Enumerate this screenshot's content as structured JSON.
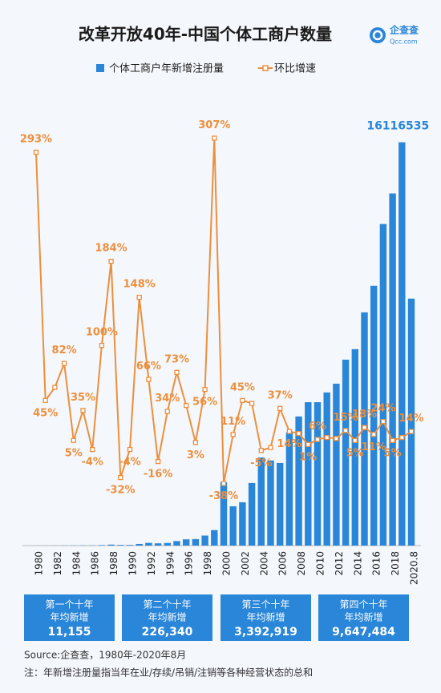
{
  "chart_data": {
    "type": "bar",
    "title": "改革开放40年-中国个体工商户数量",
    "categories": [
      "1980",
      null,
      "1982",
      null,
      "1984",
      null,
      "1986",
      null,
      "1988",
      null,
      "1990",
      null,
      "1992",
      null,
      "1994",
      null,
      "1996",
      null,
      "1998",
      null,
      "2000",
      null,
      "2002",
      null,
      "2004",
      null,
      "2006",
      null,
      "2008",
      null,
      "2010",
      null,
      "2012",
      null,
      "2014",
      null,
      "2016",
      null,
      "2018",
      null,
      "2020.8"
    ],
    "series": [
      {
        "name": "个体工商户年新增注册量",
        "type": "bar",
        "color": "#2a86d8",
        "values": [
          2000,
          3000,
          4000,
          7000,
          8000,
          10000,
          10000,
          20000,
          40000,
          27000,
          26000,
          65000,
          108000,
          90000,
          105000,
          180000,
          250000,
          260000,
          400000,
          620000,
          2530000,
          1570000,
          1730000,
          2500000,
          3520000,
          3400000,
          3300000,
          4520000,
          5160000,
          5730000,
          5730000,
          6120000,
          6470000,
          7430000,
          7850000,
          9320000,
          10380000,
          12850000,
          14070000,
          16116535,
          9870000
        ]
      },
      {
        "name": "环比增速",
        "type": "line",
        "axis": "y2",
        "color": "#ec8f3d",
        "values": [
          293,
          45,
          58,
          82,
          5,
          35,
          -4,
          100,
          184,
          -32,
          -4,
          148,
          66,
          -16,
          34,
          73,
          40,
          3,
          56,
          307,
          -38,
          11,
          45,
          42,
          -5,
          -2,
          37,
          14,
          12,
          1,
          6,
          8,
          7,
          15,
          5,
          18,
          11,
          24,
          5,
          8,
          14
        ],
        "value_labels": [
          "293%",
          "45%",
          null,
          "82%",
          "5%",
          "35%",
          "-4%",
          "100%",
          "184%",
          "-32%",
          "-4%",
          "148%",
          "66%",
          "-16%",
          "34%",
          "73%",
          null,
          "3%",
          "56%",
          "307%",
          "-38%",
          "11%",
          "45%",
          null,
          "-5%",
          null,
          "37%",
          "14%",
          null,
          "1%",
          "6%",
          null,
          null,
          "15%",
          "5%",
          "18%",
          "11%",
          "24%",
          "5%",
          null,
          "14%"
        ]
      }
    ],
    "ylim": [
      0,
      17000000
    ],
    "y2lim": [
      -100,
      325
    ]
  },
  "logo": {
    "name": "企查查",
    "url": "Qcc.com"
  },
  "summary": [
    {
      "title": "第一个十年",
      "subtitle": "年均新增",
      "value": "11,155"
    },
    {
      "title": "第二个十年",
      "subtitle": "年均新增",
      "value": "226,340"
    },
    {
      "title": "第三个十年",
      "subtitle": "年均新增",
      "value": "3,392,919"
    },
    {
      "title": "第四个十年",
      "subtitle": "年均新增",
      "value": "9,647,484"
    }
  ],
  "source": "Source:企查查，1980年-2020年8月",
  "note": "注：年新增注册量指当年在业/存续/吊销/注销等各种经营状态的总和"
}
